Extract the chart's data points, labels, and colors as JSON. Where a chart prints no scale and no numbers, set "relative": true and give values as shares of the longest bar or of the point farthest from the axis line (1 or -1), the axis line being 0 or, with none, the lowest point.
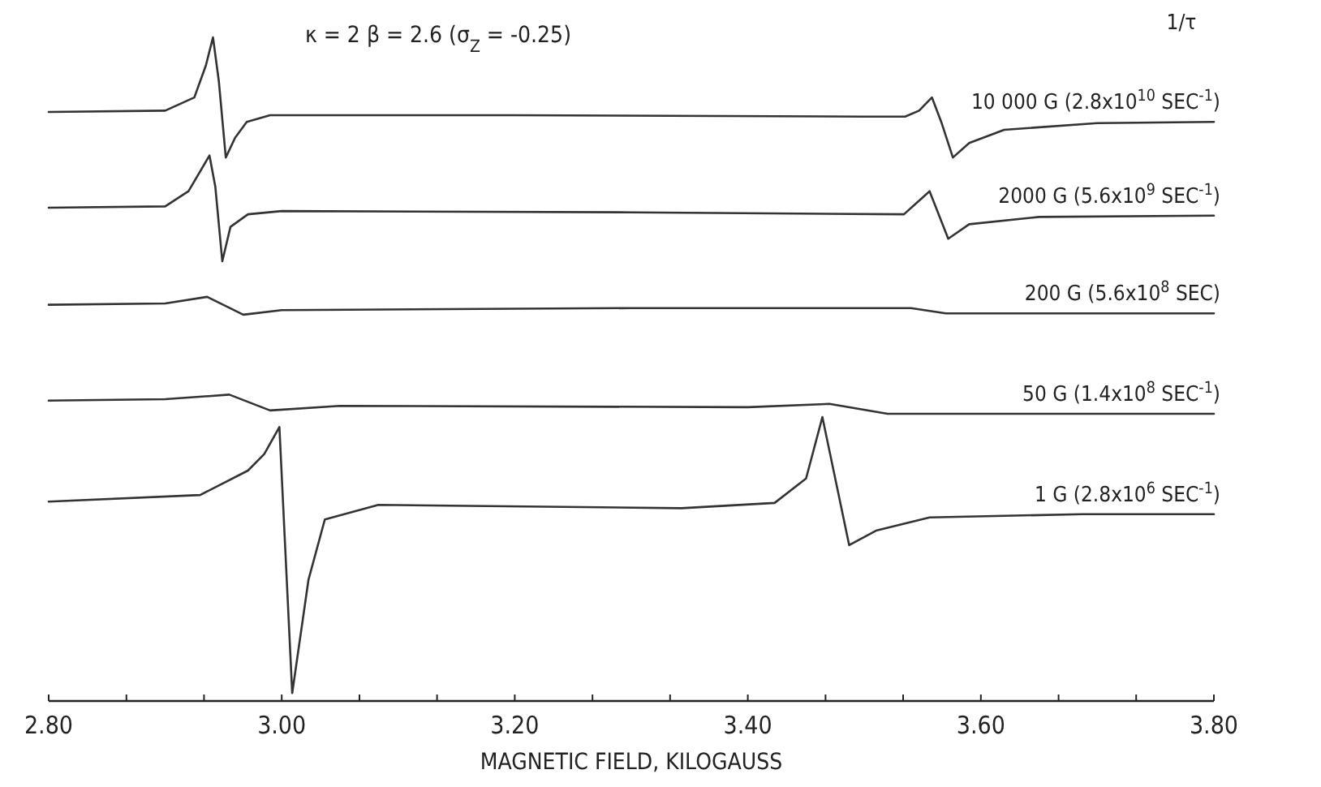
{
  "chart_data": {
    "type": "line",
    "relative": true,
    "xlabel": "MAGNETIC FIELD, KILOGAUSS",
    "legend_title": "1/τ",
    "annotations": [
      "κ = 2  β = 2.6  (σ$_{Z}$ = -0.25)"
    ],
    "xlim": [
      2.8,
      3.8
    ],
    "xticks": [
      {
        "value": 2.8,
        "label": "2.80"
      },
      {
        "value": 2.8667,
        "label": null
      },
      {
        "value": 2.9333,
        "label": null
      },
      {
        "value": 3.0,
        "label": "3.00"
      },
      {
        "value": 3.0667,
        "label": null
      },
      {
        "value": 3.1333,
        "label": null
      },
      {
        "value": 3.2,
        "label": "3.20"
      },
      {
        "value": 3.2667,
        "label": null
      },
      {
        "value": 3.3333,
        "label": null
      },
      {
        "value": 3.4,
        "label": "3.40"
      },
      {
        "value": 3.4667,
        "label": null
      },
      {
        "value": 3.5333,
        "label": null
      },
      {
        "value": 3.6,
        "label": "3.60"
      },
      {
        "value": 3.6667,
        "label": null
      },
      {
        "value": 3.7333,
        "label": null
      },
      {
        "value": 3.8,
        "label": "3.80"
      }
    ],
    "series": [
      {
        "name": "10 000 G (2.8x10$^{10}$ SEC$^{-1}$)",
        "color": "#333333",
        "x": [
          2.8,
          2.9,
          2.925,
          2.935,
          2.941,
          2.946,
          2.952,
          2.96,
          2.97,
          2.99,
          3.2,
          3.5,
          3.535,
          3.547,
          3.558,
          3.566,
          3.576,
          3.59,
          3.62,
          3.7,
          3.8
        ],
        "values": [
          0.887,
          0.889,
          0.909,
          0.958,
          1.0,
          0.934,
          0.818,
          0.848,
          0.872,
          0.882,
          0.882,
          0.88,
          0.88,
          0.889,
          0.909,
          0.872,
          0.818,
          0.84,
          0.86,
          0.87,
          0.872
        ]
      },
      {
        "name": "2000 G (5.6x10$^{9}$ SEC$^{-1}$)",
        "color": "#333333",
        "x": [
          2.8,
          2.9,
          2.92,
          2.938,
          2.943,
          2.949,
          2.956,
          2.971,
          3.0,
          3.3,
          3.534,
          3.556,
          3.572,
          3.59,
          3.65,
          3.8
        ],
        "values": [
          0.742,
          0.744,
          0.767,
          0.821,
          0.774,
          0.661,
          0.713,
          0.732,
          0.737,
          0.735,
          0.732,
          0.767,
          0.695,
          0.717,
          0.728,
          0.73
        ]
      },
      {
        "name": "200 G (5.6x10$^{8}$ SEC)",
        "color": "#333333",
        "x": [
          2.8,
          2.9,
          2.936,
          2.967,
          3.0,
          3.3,
          3.54,
          3.57,
          3.8
        ],
        "values": [
          0.595,
          0.597,
          0.607,
          0.58,
          0.587,
          0.59,
          0.59,
          0.582,
          0.582
        ]
      },
      {
        "name": "50 G (1.4x10$^{8}$ SEC$^{-1}$)",
        "color": "#333333",
        "x": [
          2.8,
          2.9,
          2.955,
          2.99,
          3.05,
          3.4,
          3.47,
          3.52,
          3.8
        ],
        "values": [
          0.45,
          0.452,
          0.459,
          0.435,
          0.442,
          0.44,
          0.445,
          0.43,
          0.43
        ]
      },
      {
        "name": "1 G (2.8x10$^{6}$ SEC$^{-1}$)",
        "color": "#333333",
        "x": [
          2.8,
          2.93,
          2.971,
          2.985,
          2.998,
          3.009,
          3.023,
          3.037,
          3.083,
          3.343,
          3.423,
          3.45,
          3.464,
          3.487,
          3.51,
          3.556,
          3.687,
          3.8
        ],
        "values": [
          0.297,
          0.307,
          0.344,
          0.369,
          0.41,
          0.007,
          0.179,
          0.27,
          0.292,
          0.287,
          0.295,
          0.332,
          0.425,
          0.231,
          0.253,
          0.273,
          0.278,
          0.278
        ]
      }
    ]
  }
}
